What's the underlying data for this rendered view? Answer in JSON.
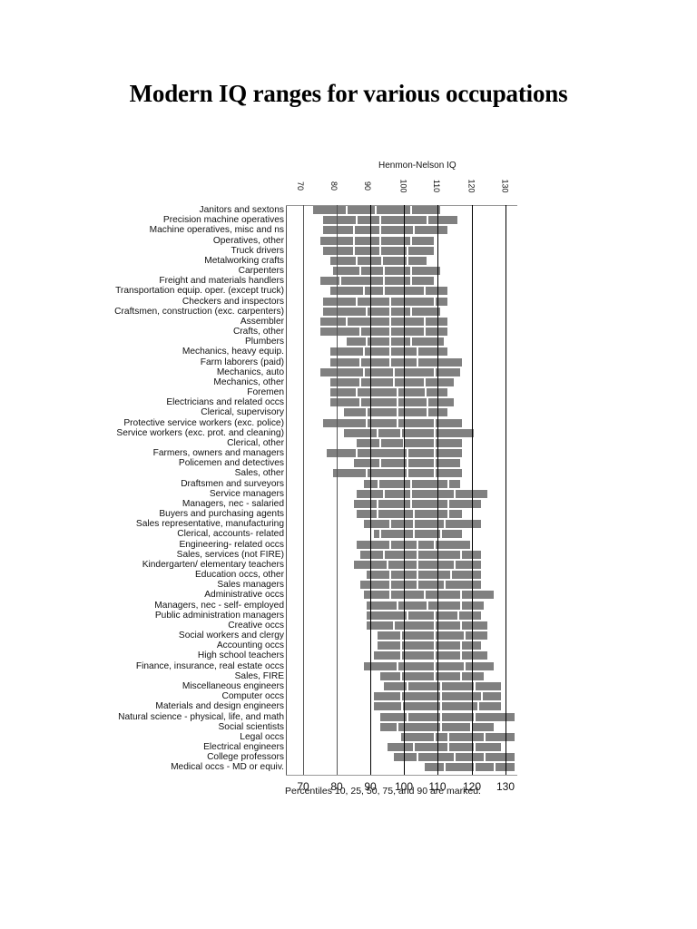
{
  "title": "Modern IQ ranges for various occupations",
  "chart_data": {
    "type": "bar",
    "subtype": "horizontal percentile range bars",
    "title": "Modern IQ ranges for various occupations",
    "xlabel": "Henmon-Nelson IQ",
    "caption": "Percentiles 10, 25, 50, 75, and 90 are marked.",
    "xlim": [
      65,
      134
    ],
    "xticks": [
      70,
      80,
      90,
      100,
      110,
      120,
      130
    ],
    "grid": "vertical lines at ticks",
    "percentile_keys": [
      "p10",
      "p25",
      "p50",
      "p75",
      "p90"
    ],
    "categories": [
      "Janitors and sextons",
      "Precision machine operatives",
      "Machine operatives, misc and ns",
      "Operatives, other",
      "Truck drivers",
      "Metalworking crafts",
      "Carpenters",
      "Freight and materials handlers",
      "Transportation equip. oper. (except truck)",
      "Checkers and inspectors",
      "Craftsmen, construction (exc. carpenters)",
      "Assembler",
      "Crafts, other",
      "Plumbers",
      "Mechanics, heavy equip.",
      "Farm laborers (paid)",
      "Mechanics, auto",
      "Mechanics, other",
      "Foremen",
      "Electricians and related occs",
      "Clerical, supervisory",
      "Protective service workers (exc. police)",
      "Service workers (exc. prot. and cleaning)",
      "Clerical, other",
      "Farmers, owners and managers",
      "Policemen and detectives",
      "Sales, other",
      "Draftsmen and surveyors",
      "Service managers",
      "Managers, nec - salaried",
      "Buyers and purchasing agents",
      "Sales representative, manufacturing",
      "Clerical, accounts- related",
      "Engineering- related occs",
      "Sales, services (not FIRE)",
      "Kindergarten/ elementary teachers",
      "Education occs, other",
      "Sales managers",
      "Administrative occs",
      "Managers, nec - self- employed",
      "Public administration managers",
      "Creative occs",
      "Social workers and clergy",
      "Accounting occs",
      "High school teachers",
      "Finance, insurance, real estate occs",
      "Sales, FIRE",
      "Miscellaneous engineers",
      "Computer occs",
      "Materials and design engineers",
      "Natural science - physical, life, and math",
      "Social scientists",
      "Legal occs",
      "Electrical engineers",
      "College professors",
      "Medical occs - MD or equiv."
    ],
    "values": [
      [
        73,
        83,
        91.5,
        102,
        111
      ],
      [
        76,
        86,
        93,
        107,
        116
      ],
      [
        76,
        85,
        93,
        103,
        113
      ],
      [
        75,
        85,
        93,
        102,
        109
      ],
      [
        76,
        85,
        93,
        101,
        109
      ],
      [
        78,
        86,
        93.5,
        101,
        107
      ],
      [
        79,
        87,
        94,
        102,
        111
      ],
      [
        75,
        81,
        94,
        102,
        109
      ],
      [
        78,
        88,
        94,
        106,
        113
      ],
      [
        76,
        86,
        96,
        109,
        113
      ],
      [
        76,
        89,
        96,
        102,
        111
      ],
      [
        75,
        83,
        96,
        106,
        113
      ],
      [
        75,
        87,
        96,
        106,
        113
      ],
      [
        83,
        89,
        96,
        102,
        112
      ],
      [
        78,
        88,
        96,
        104,
        113
      ],
      [
        78,
        87,
        96,
        104,
        117.5
      ],
      [
        75,
        88,
        97,
        109,
        117
      ],
      [
        78,
        87,
        97,
        106,
        115
      ],
      [
        78,
        86,
        98,
        106.5,
        113
      ],
      [
        78,
        87,
        98,
        107,
        115
      ],
      [
        82,
        89,
        98,
        107,
        113
      ],
      [
        76,
        89,
        98,
        109,
        117.5
      ],
      [
        82,
        92,
        99,
        109,
        121
      ],
      [
        86,
        93,
        100,
        109,
        117.5
      ],
      [
        77,
        86,
        101,
        109,
        117.5
      ],
      [
        85,
        93,
        101,
        109,
        117
      ],
      [
        79,
        89,
        101,
        109,
        117.5
      ],
      [
        88,
        92.5,
        102,
        113,
        117
      ],
      [
        86,
        94,
        102,
        115,
        125
      ],
      [
        85,
        92,
        102,
        113,
        123
      ],
      [
        86,
        92,
        103,
        113,
        117.5
      ],
      [
        88,
        96,
        103,
        112,
        123
      ],
      [
        91,
        93,
        103,
        111,
        117.5
      ],
      [
        86,
        96,
        104,
        109,
        120
      ],
      [
        87,
        94,
        104,
        117,
        123
      ],
      [
        85,
        95,
        104,
        115,
        123
      ],
      [
        89,
        96,
        104,
        114,
        123
      ],
      [
        87,
        96,
        104,
        112,
        123
      ],
      [
        88,
        96,
        106,
        117,
        127
      ],
      [
        89,
        98,
        107,
        117,
        124
      ],
      [
        89,
        101,
        109,
        116,
        123
      ],
      [
        89,
        97,
        109,
        117,
        125
      ],
      [
        92,
        99,
        109,
        118,
        125
      ],
      [
        92,
        99,
        109,
        117,
        123
      ],
      [
        91,
        99,
        109,
        117,
        125
      ],
      [
        88,
        98,
        109,
        118,
        127
      ],
      [
        93,
        99,
        109,
        117,
        124
      ],
      [
        94,
        101,
        111,
        121,
        129
      ],
      [
        91,
        99,
        111,
        123,
        129
      ],
      [
        91,
        99.5,
        111,
        122,
        129
      ],
      [
        93,
        101,
        111,
        121,
        133
      ],
      [
        93,
        98,
        111,
        120,
        127
      ],
      [
        99,
        109,
        113,
        124,
        133
      ],
      [
        95,
        103,
        113,
        121,
        129
      ],
      [
        97,
        104,
        115,
        124,
        133
      ],
      [
        106,
        112,
        121,
        127,
        133
      ]
    ]
  }
}
